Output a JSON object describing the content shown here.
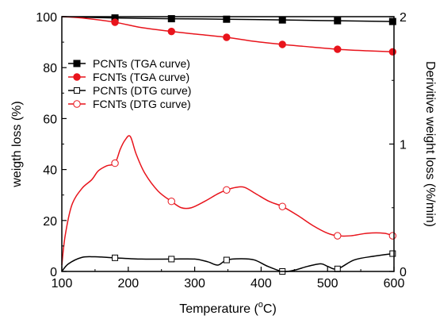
{
  "chart_data": {
    "type": "line",
    "xlabel": "Temperature (°C)",
    "xlabel_main": "Temperature (",
    "xlabel_unit_super": "o",
    "xlabel_unit_tail": "C)",
    "ylabel_left": "weigth loss (%)",
    "ylabel_right": "Derivitive weight loss (%/min)",
    "xlim": [
      100,
      600
    ],
    "ylim_left": [
      0,
      100
    ],
    "ylim_right": [
      0,
      2
    ],
    "x_ticks": [
      100,
      200,
      300,
      400,
      500,
      600
    ],
    "y_ticks_left": [
      0,
      20,
      40,
      60,
      80,
      100
    ],
    "y_ticks_right": [
      0,
      1,
      2
    ],
    "grid": false,
    "legend_position": "upper-left",
    "colors": {
      "black": "#000000",
      "red": "#e8141c"
    },
    "series": [
      {
        "name": "PCNTs (TGA curve)",
        "axis": "left",
        "color": "#000000",
        "marker": "filled-square",
        "x": [
          100,
          180,
          265,
          348,
          432,
          515,
          598
        ],
        "y": [
          100,
          99.5,
          99.2,
          99.0,
          98.7,
          98.4,
          98.1
        ],
        "marker_x": [
          180,
          265,
          348,
          432,
          515,
          598
        ]
      },
      {
        "name": "FCNTs (TGA curve)",
        "axis": "left",
        "color": "#e8141c",
        "marker": "filled-circle",
        "x": [
          100,
          130,
          180,
          220,
          265,
          300,
          348,
          390,
          432,
          475,
          515,
          560,
          598
        ],
        "y": [
          100,
          99.5,
          97.8,
          95.7,
          94.2,
          93.2,
          91.9,
          90.3,
          89.1,
          88.1,
          87.2,
          86.6,
          86.2
        ],
        "marker_x": [
          180,
          265,
          348,
          432,
          515,
          598
        ]
      },
      {
        "name": "PCNTs (DTG curve)",
        "axis": "right",
        "color": "#000000",
        "marker": "open-square",
        "x": [
          100,
          110,
          130,
          150,
          180,
          220,
          265,
          300,
          320,
          335,
          348,
          370,
          390,
          410,
          432,
          450,
          470,
          490,
          500,
          515,
          540,
          570,
          598
        ],
        "y": [
          0.0,
          0.06,
          0.11,
          0.115,
          0.107,
          0.097,
          0.097,
          0.097,
          0.075,
          0.05,
          0.09,
          0.1,
          0.09,
          0.04,
          0.0,
          0.01,
          0.04,
          0.06,
          0.04,
          0.02,
          0.09,
          0.12,
          0.14
        ],
        "marker_x": [
          180,
          265,
          348,
          432,
          515,
          598
        ]
      },
      {
        "name": "FCNTs (DTG curve)",
        "axis": "right",
        "color": "#e8141c",
        "marker": "open-circle",
        "x": [
          100,
          105,
          115,
          130,
          145,
          155,
          168,
          180,
          188,
          195,
          203,
          212,
          225,
          245,
          265,
          280,
          295,
          315,
          335,
          348,
          362,
          375,
          392,
          412,
          432,
          455,
          478,
          500,
          515,
          535,
          560,
          585,
          598
        ],
        "y": [
          0.05,
          0.28,
          0.52,
          0.65,
          0.72,
          0.79,
          0.83,
          0.85,
          0.96,
          1.03,
          1.06,
          0.92,
          0.77,
          0.63,
          0.55,
          0.5,
          0.5,
          0.55,
          0.61,
          0.64,
          0.66,
          0.66,
          0.61,
          0.55,
          0.51,
          0.44,
          0.36,
          0.3,
          0.28,
          0.28,
          0.3,
          0.3,
          0.28
        ],
        "marker_x": [
          180,
          265,
          348,
          432,
          515,
          598
        ]
      }
    ]
  }
}
